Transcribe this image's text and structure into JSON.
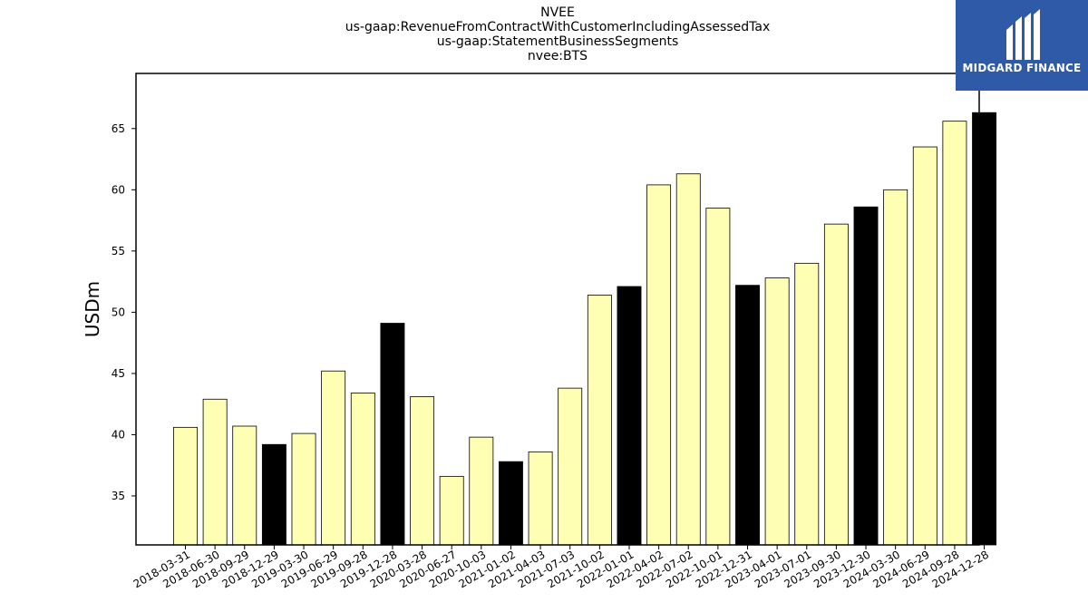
{
  "logo": {
    "text": "MIDGARD FINANCE",
    "background": "#2e5aa8",
    "icon": "midgard-logo-icon"
  },
  "chart_data": {
    "type": "bar",
    "title_lines": [
      "NVEE",
      "us-gaap:RevenueFromContractWithCustomerIncludingAssessedTax",
      "us-gaap:StatementBusinessSegments",
      "nvee:BTS"
    ],
    "xlabel": "",
    "ylabel": "USDm",
    "ylim": [
      31,
      69.5
    ],
    "yticks": [
      35,
      40,
      45,
      50,
      55,
      60,
      65
    ],
    "grid": false,
    "colors": {
      "quarter": "#ffffb3",
      "year_end": "#000000",
      "edge": "#000000"
    },
    "categories": [
      "2018-03-31",
      "2018-06-30",
      "2018-09-29",
      "2018-12-29",
      "2019-03-30",
      "2019-06-29",
      "2019-09-28",
      "2019-12-28",
      "2020-03-28",
      "2020-06-27",
      "2020-10-03",
      "2021-01-02",
      "2021-04-03",
      "2021-07-03",
      "2021-10-02",
      "2022-01-01",
      "2022-04-02",
      "2022-07-02",
      "2022-10-01",
      "2022-12-31",
      "2023-04-01",
      "2023-07-01",
      "2023-09-30",
      "2023-12-30",
      "2024-03-30",
      "2024-06-29",
      "2024-09-28",
      "2024-12-28"
    ],
    "values": [
      40.6,
      42.9,
      40.7,
      39.2,
      40.1,
      45.2,
      43.4,
      49.1,
      43.1,
      36.6,
      39.8,
      37.8,
      38.6,
      43.8,
      51.4,
      52.1,
      60.4,
      61.3,
      58.5,
      52.2,
      52.8,
      54.0,
      57.2,
      58.6,
      60.0,
      63.5,
      65.6,
      66.3
    ],
    "highlight": [
      false,
      false,
      false,
      true,
      false,
      false,
      false,
      true,
      false,
      false,
      false,
      true,
      false,
      false,
      false,
      true,
      false,
      false,
      false,
      true,
      false,
      false,
      false,
      true,
      false,
      false,
      false,
      true
    ]
  }
}
